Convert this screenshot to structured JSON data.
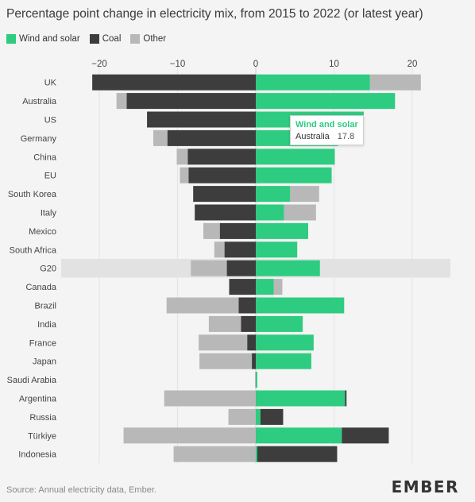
{
  "title": "Percentage point change in electricity mix, from 2015 to 2022 (or latest year)",
  "legend": [
    {
      "label": "Wind and solar",
      "color": "#2ecc80"
    },
    {
      "label": "Coal",
      "color": "#3d3d3d"
    },
    {
      "label": "Other",
      "color": "#b8b8b8"
    }
  ],
  "footer": "Source: Annual electricity data, Ember.",
  "logo": "EMBER",
  "tooltip": {
    "title": "Wind and solar",
    "country": "Australia",
    "value": "17.8"
  },
  "chart_data": {
    "type": "bar",
    "orientation": "horizontal",
    "stacked": true,
    "xlim": [
      -25,
      25
    ],
    "xticks": [
      -20,
      -10,
      0,
      10,
      20
    ],
    "xtick_labels": [
      "−20",
      "−10",
      "0",
      "10",
      "20"
    ],
    "highlight_category": "G20",
    "categories": [
      "UK",
      "Australia",
      "US",
      "Germany",
      "China",
      "EU",
      "South Korea",
      "Italy",
      "Mexico",
      "South Africa",
      "G20",
      "Canada",
      "Brazil",
      "India",
      "France",
      "Japan",
      "Saudi Arabia",
      "Argentina",
      "Russia",
      "Türkiye",
      "Indonesia"
    ],
    "series": [
      {
        "name": "Wind and solar",
        "color": "#2ecc80",
        "values": [
          14.6,
          17.8,
          13.8,
          10.5,
          10.1,
          9.7,
          4.4,
          3.6,
          6.7,
          5.3,
          8.2,
          2.3,
          11.3,
          6.0,
          7.4,
          7.1,
          0.2,
          11.4,
          0.6,
          11.0,
          0.2
        ]
      },
      {
        "name": "Coal",
        "color": "#3d3d3d",
        "values": [
          -20.9,
          -16.5,
          -13.9,
          -11.3,
          -8.7,
          -8.6,
          -8.0,
          -7.8,
          -4.6,
          -4.0,
          -3.7,
          -3.4,
          -2.2,
          -1.9,
          -1.1,
          -0.5,
          0,
          0.2,
          2.9,
          6.0,
          10.2
        ]
      },
      {
        "name": "Other",
        "color": "#b8b8b8",
        "values": [
          6.5,
          -1.3,
          0.0,
          -1.8,
          -1.4,
          -1.1,
          3.7,
          4.1,
          -2.1,
          -1.3,
          -4.6,
          1.1,
          -9.2,
          -4.1,
          -6.2,
          -6.7,
          -0.1,
          -11.7,
          -3.5,
          -16.9,
          -10.5
        ]
      }
    ]
  }
}
